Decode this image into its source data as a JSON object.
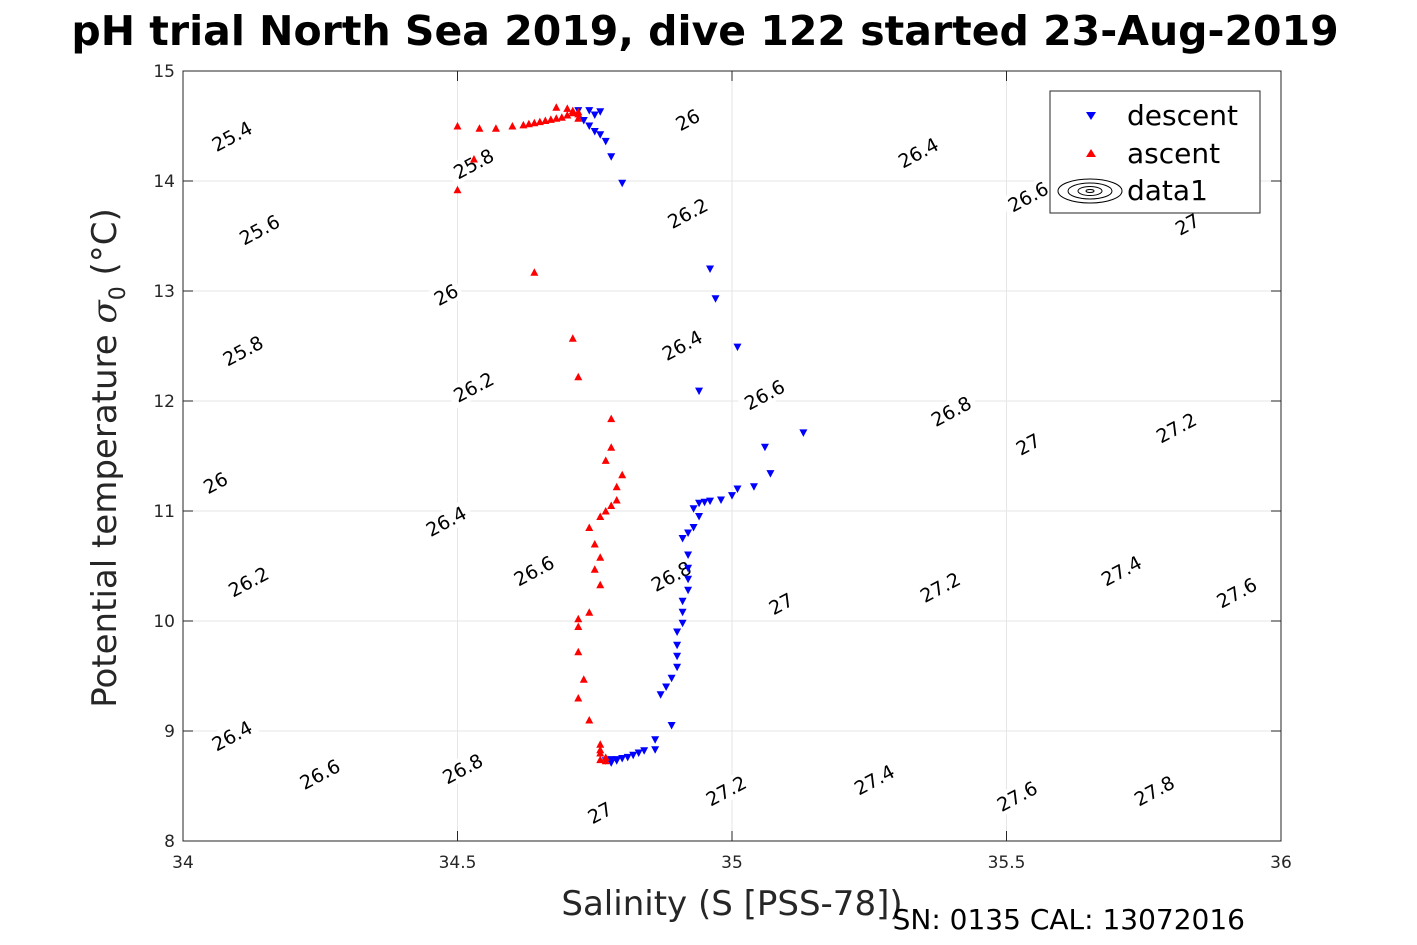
{
  "chart_data": {
    "type": "scatter",
    "title": "pH trial North Sea 2019, dive 122 started 23-Aug-2019",
    "xlabel": "Salinity (S [PSS-78])",
    "ylabel_text": "Potential temperature ",
    "ylabel_symbol": "σ",
    "ylabel_sub": "0",
    "ylabel_unit": " (°C)",
    "xlim": [
      34,
      36
    ],
    "ylim": [
      8,
      15
    ],
    "xticks": [
      34,
      34.5,
      35,
      35.5,
      36
    ],
    "xtick_labels": [
      "34",
      "34.5",
      "35",
      "35.5",
      "36"
    ],
    "yticks": [
      8,
      9,
      10,
      11,
      12,
      13,
      14,
      15
    ],
    "ytick_labels": [
      "8",
      "9",
      "10",
      "11",
      "12",
      "13",
      "14",
      "15"
    ],
    "grid": true,
    "legend_position": "top-right",
    "legend": [
      {
        "label": "descent",
        "marker": "triangle-down",
        "color": "#0000ff"
      },
      {
        "label": "ascent",
        "marker": "triangle-up",
        "color": "#ff0000"
      },
      {
        "label": "data1",
        "marker": "contour",
        "color": "#000000"
      }
    ],
    "contours": {
      "levels": [
        25.4,
        25.6,
        25.8,
        26.0,
        26.2,
        26.4,
        26.6,
        26.8,
        27.0,
        27.2,
        27.4,
        27.6,
        27.8
      ],
      "labels": [
        {
          "text": "25.4",
          "x": 34.09,
          "y": 14.4,
          "angle": -28
        },
        {
          "text": "25.6",
          "x": 34.14,
          "y": 13.55,
          "angle": -28
        },
        {
          "text": "25.8",
          "x": 34.53,
          "y": 14.15,
          "angle": -28
        },
        {
          "text": "26",
          "x": 34.92,
          "y": 14.55,
          "angle": -28
        },
        {
          "text": "25.8",
          "x": 34.11,
          "y": 12.45,
          "angle": -28
        },
        {
          "text": "26",
          "x": 34.48,
          "y": 12.96,
          "angle": -28
        },
        {
          "text": "26.2",
          "x": 34.92,
          "y": 13.7,
          "angle": -28
        },
        {
          "text": "26.4",
          "x": 35.34,
          "y": 14.25,
          "angle": -28
        },
        {
          "text": "26.6",
          "x": 35.54,
          "y": 13.85,
          "angle": -28
        },
        {
          "text": "27",
          "x": 35.83,
          "y": 13.6,
          "angle": -28
        },
        {
          "text": "26",
          "x": 34.06,
          "y": 11.25,
          "angle": -28
        },
        {
          "text": "26.2",
          "x": 34.53,
          "y": 12.12,
          "angle": -28
        },
        {
          "text": "26.4",
          "x": 34.91,
          "y": 12.5,
          "angle": -28
        },
        {
          "text": "26.6",
          "x": 35.06,
          "y": 12.05,
          "angle": -28
        },
        {
          "text": "26.8",
          "x": 35.4,
          "y": 11.9,
          "angle": -28
        },
        {
          "text": "27",
          "x": 35.54,
          "y": 11.6,
          "angle": -28
        },
        {
          "text": "27.2",
          "x": 35.81,
          "y": 11.75,
          "angle": -28
        },
        {
          "text": "26.2",
          "x": 34.12,
          "y": 10.35,
          "angle": -28
        },
        {
          "text": "26.4",
          "x": 34.48,
          "y": 10.9,
          "angle": -28
        },
        {
          "text": "26.6",
          "x": 34.64,
          "y": 10.45,
          "angle": -28
        },
        {
          "text": "26.8",
          "x": 34.89,
          "y": 10.4,
          "angle": -28
        },
        {
          "text": "27",
          "x": 35.09,
          "y": 10.15,
          "angle": -28
        },
        {
          "text": "27.2",
          "x": 35.38,
          "y": 10.3,
          "angle": -28
        },
        {
          "text": "27.4",
          "x": 35.71,
          "y": 10.45,
          "angle": -28
        },
        {
          "text": "27.6",
          "x": 35.92,
          "y": 10.25,
          "angle": -28
        },
        {
          "text": "26.4",
          "x": 34.09,
          "y": 8.95,
          "angle": -28
        },
        {
          "text": "26.6",
          "x": 34.25,
          "y": 8.6,
          "angle": -28
        },
        {
          "text": "26.8",
          "x": 34.51,
          "y": 8.65,
          "angle": -28
        },
        {
          "text": "27",
          "x": 34.76,
          "y": 8.25,
          "angle": -28
        },
        {
          "text": "27.2",
          "x": 34.99,
          "y": 8.45,
          "angle": -28
        },
        {
          "text": "27.4",
          "x": 35.26,
          "y": 8.55,
          "angle": -28
        },
        {
          "text": "27.6",
          "x": 35.52,
          "y": 8.4,
          "angle": -28
        },
        {
          "text": "27.8",
          "x": 35.77,
          "y": 8.45,
          "angle": -28
        }
      ]
    },
    "series": [
      {
        "name": "descent",
        "marker": "triangle-down",
        "color": "#0000ff",
        "points": [
          [
            34.72,
            14.64
          ],
          [
            34.74,
            14.64
          ],
          [
            34.76,
            14.63
          ],
          [
            34.75,
            14.6
          ],
          [
            34.73,
            14.55
          ],
          [
            34.74,
            14.5
          ],
          [
            34.75,
            14.45
          ],
          [
            34.76,
            14.42
          ],
          [
            34.77,
            14.36
          ],
          [
            34.78,
            14.22
          ],
          [
            34.8,
            13.98
          ],
          [
            34.96,
            13.2
          ],
          [
            34.97,
            12.93
          ],
          [
            35.01,
            12.49
          ],
          [
            34.94,
            12.09
          ],
          [
            35.13,
            11.71
          ],
          [
            35.06,
            11.58
          ],
          [
            35.07,
            11.34
          ],
          [
            35.04,
            11.22
          ],
          [
            35.01,
            11.2
          ],
          [
            35.0,
            11.14
          ],
          [
            34.98,
            11.1
          ],
          [
            34.96,
            11.09
          ],
          [
            34.95,
            11.08
          ],
          [
            34.94,
            11.07
          ],
          [
            34.93,
            11.02
          ],
          [
            34.94,
            10.95
          ],
          [
            34.93,
            10.85
          ],
          [
            34.92,
            10.8
          ],
          [
            34.91,
            10.75
          ],
          [
            34.92,
            10.6
          ],
          [
            34.92,
            10.48
          ],
          [
            34.92,
            10.38
          ],
          [
            34.92,
            10.28
          ],
          [
            34.91,
            10.18
          ],
          [
            34.91,
            10.08
          ],
          [
            34.91,
            9.98
          ],
          [
            34.9,
            9.9
          ],
          [
            34.9,
            9.78
          ],
          [
            34.9,
            9.68
          ],
          [
            34.9,
            9.58
          ],
          [
            34.89,
            9.48
          ],
          [
            34.88,
            9.4
          ],
          [
            34.87,
            9.33
          ],
          [
            34.89,
            9.05
          ],
          [
            34.86,
            8.92
          ],
          [
            34.86,
            8.83
          ],
          [
            34.84,
            8.82
          ],
          [
            34.83,
            8.8
          ],
          [
            34.82,
            8.78
          ],
          [
            34.81,
            8.76
          ],
          [
            34.8,
            8.75
          ],
          [
            34.79,
            8.74
          ],
          [
            34.78,
            8.74
          ],
          [
            34.77,
            8.73
          ],
          [
            34.78,
            8.71
          ],
          [
            34.79,
            8.73
          ]
        ]
      },
      {
        "name": "ascent",
        "marker": "triangle-up",
        "color": "#ff0000",
        "points": [
          [
            34.5,
            14.5
          ],
          [
            34.54,
            14.48
          ],
          [
            34.57,
            14.48
          ],
          [
            34.6,
            14.5
          ],
          [
            34.62,
            14.51
          ],
          [
            34.63,
            14.52
          ],
          [
            34.64,
            14.53
          ],
          [
            34.65,
            14.54
          ],
          [
            34.66,
            14.55
          ],
          [
            34.67,
            14.56
          ],
          [
            34.68,
            14.57
          ],
          [
            34.69,
            14.58
          ],
          [
            34.7,
            14.6
          ],
          [
            34.71,
            14.62
          ],
          [
            34.72,
            14.61
          ],
          [
            34.68,
            14.67
          ],
          [
            34.7,
            14.66
          ],
          [
            34.71,
            14.64
          ],
          [
            34.72,
            14.63
          ],
          [
            34.72,
            14.57
          ],
          [
            34.53,
            14.2
          ],
          [
            34.5,
            13.92
          ],
          [
            34.64,
            13.17
          ],
          [
            34.71,
            12.57
          ],
          [
            34.72,
            12.22
          ],
          [
            34.78,
            11.84
          ],
          [
            34.78,
            11.58
          ],
          [
            34.77,
            11.46
          ],
          [
            34.8,
            11.33
          ],
          [
            34.79,
            11.22
          ],
          [
            34.79,
            11.1
          ],
          [
            34.78,
            11.05
          ],
          [
            34.77,
            11.0
          ],
          [
            34.76,
            10.95
          ],
          [
            34.74,
            10.85
          ],
          [
            34.75,
            10.7
          ],
          [
            34.76,
            10.58
          ],
          [
            34.75,
            10.47
          ],
          [
            34.76,
            10.33
          ],
          [
            34.74,
            10.08
          ],
          [
            34.72,
            10.02
          ],
          [
            34.72,
            9.95
          ],
          [
            34.72,
            9.72
          ],
          [
            34.73,
            9.47
          ],
          [
            34.72,
            9.3
          ],
          [
            34.74,
            9.1
          ],
          [
            34.76,
            8.88
          ],
          [
            34.76,
            8.83
          ],
          [
            34.76,
            8.8
          ],
          [
            34.77,
            8.76
          ],
          [
            34.76,
            8.74
          ],
          [
            34.77,
            8.73
          ]
        ]
      }
    ]
  },
  "footer_text": "SN: 0135  CAL: 13072016"
}
